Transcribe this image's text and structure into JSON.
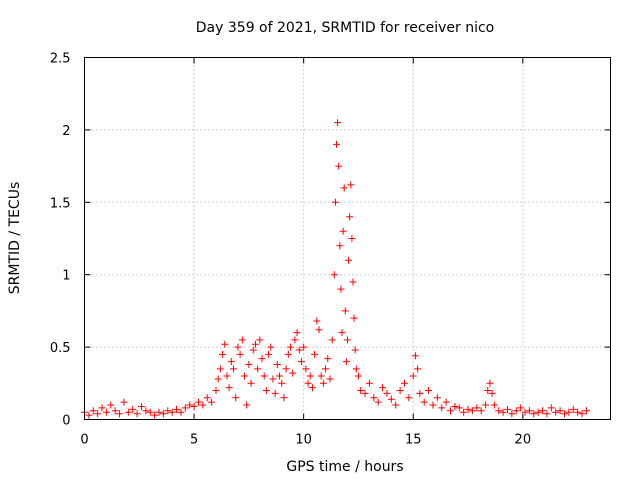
{
  "chart_data": {
    "type": "scatter",
    "title": "Day 359 of 2021, SRMTID for receiver nico",
    "xlabel": "GPS time / hours",
    "ylabel": "SRMTID / TECUs",
    "xlim": [
      0,
      24
    ],
    "ylim": [
      0,
      2.5
    ],
    "xticks": [
      0,
      5,
      10,
      15,
      20
    ],
    "yticks": [
      0,
      0.5,
      1,
      1.5,
      2,
      2.5
    ],
    "xtick_labels": [
      "0",
      "5",
      "10",
      "15",
      "20"
    ],
    "ytick_labels": [
      "0",
      "0.5",
      "1",
      "1.5",
      "2",
      "2.5"
    ],
    "grid": true,
    "marker": "plus",
    "series": [
      {
        "name": "SRMTID",
        "color": "#ff0000",
        "points": [
          [
            0.0,
            0.05
          ],
          [
            0.2,
            0.03
          ],
          [
            0.4,
            0.06
          ],
          [
            0.6,
            0.04
          ],
          [
            0.8,
            0.08
          ],
          [
            1.0,
            0.05
          ],
          [
            1.2,
            0.1
          ],
          [
            1.4,
            0.06
          ],
          [
            1.6,
            0.04
          ],
          [
            1.8,
            0.12
          ],
          [
            2.0,
            0.05
          ],
          [
            2.2,
            0.07
          ],
          [
            2.4,
            0.04
          ],
          [
            2.6,
            0.09
          ],
          [
            2.8,
            0.06
          ],
          [
            3.0,
            0.05
          ],
          [
            3.2,
            0.03
          ],
          [
            3.4,
            0.05
          ],
          [
            3.6,
            0.04
          ],
          [
            3.8,
            0.06
          ],
          [
            4.0,
            0.05
          ],
          [
            4.2,
            0.07
          ],
          [
            4.4,
            0.05
          ],
          [
            4.6,
            0.08
          ],
          [
            4.8,
            0.1
          ],
          [
            5.0,
            0.09
          ],
          [
            5.2,
            0.12
          ],
          [
            5.4,
            0.1
          ],
          [
            5.6,
            0.15
          ],
          [
            5.8,
            0.12
          ],
          [
            6.0,
            0.2
          ],
          [
            6.1,
            0.28
          ],
          [
            6.2,
            0.35
          ],
          [
            6.3,
            0.45
          ],
          [
            6.4,
            0.52
          ],
          [
            6.5,
            0.3
          ],
          [
            6.6,
            0.22
          ],
          [
            6.7,
            0.4
          ],
          [
            6.8,
            0.35
          ],
          [
            6.9,
            0.15
          ],
          [
            7.0,
            0.5
          ],
          [
            7.1,
            0.45
          ],
          [
            7.2,
            0.55
          ],
          [
            7.3,
            0.3
          ],
          [
            7.4,
            0.1
          ],
          [
            7.5,
            0.38
          ],
          [
            7.6,
            0.25
          ],
          [
            7.7,
            0.48
          ],
          [
            7.8,
            0.52
          ],
          [
            7.9,
            0.35
          ],
          [
            8.0,
            0.55
          ],
          [
            8.1,
            0.42
          ],
          [
            8.2,
            0.3
          ],
          [
            8.3,
            0.2
          ],
          [
            8.4,
            0.45
          ],
          [
            8.5,
            0.5
          ],
          [
            8.6,
            0.28
          ],
          [
            8.7,
            0.18
          ],
          [
            8.8,
            0.38
          ],
          [
            8.9,
            0.3
          ],
          [
            9.0,
            0.25
          ],
          [
            9.1,
            0.15
          ],
          [
            9.2,
            0.35
          ],
          [
            9.3,
            0.45
          ],
          [
            9.4,
            0.5
          ],
          [
            9.5,
            0.32
          ],
          [
            9.6,
            0.55
          ],
          [
            9.7,
            0.6
          ],
          [
            9.8,
            0.48
          ],
          [
            9.9,
            0.4
          ],
          [
            10.0,
            0.5
          ],
          [
            10.1,
            0.35
          ],
          [
            10.2,
            0.25
          ],
          [
            10.3,
            0.3
          ],
          [
            10.4,
            0.22
          ],
          [
            10.5,
            0.45
          ],
          [
            10.6,
            0.68
          ],
          [
            10.7,
            0.62
          ],
          [
            10.8,
            0.3
          ],
          [
            10.9,
            0.25
          ],
          [
            11.0,
            0.35
          ],
          [
            11.1,
            0.42
          ],
          [
            11.2,
            0.28
          ],
          [
            11.3,
            0.55
          ],
          [
            11.4,
            1.0
          ],
          [
            11.45,
            1.5
          ],
          [
            11.5,
            1.9
          ],
          [
            11.55,
            2.05
          ],
          [
            11.6,
            1.75
          ],
          [
            11.65,
            1.2
          ],
          [
            11.7,
            0.9
          ],
          [
            11.75,
            0.6
          ],
          [
            11.8,
            1.3
          ],
          [
            11.85,
            1.6
          ],
          [
            11.9,
            0.75
          ],
          [
            11.95,
            0.4
          ],
          [
            12.0,
            0.55
          ],
          [
            12.05,
            1.1
          ],
          [
            12.1,
            1.4
          ],
          [
            12.15,
            1.62
          ],
          [
            12.2,
            1.25
          ],
          [
            12.25,
            0.95
          ],
          [
            12.3,
            0.7
          ],
          [
            12.35,
            0.48
          ],
          [
            12.4,
            0.35
          ],
          [
            12.5,
            0.3
          ],
          [
            12.6,
            0.2
          ],
          [
            12.8,
            0.18
          ],
          [
            13.0,
            0.25
          ],
          [
            13.2,
            0.15
          ],
          [
            13.4,
            0.12
          ],
          [
            13.6,
            0.22
          ],
          [
            13.8,
            0.18
          ],
          [
            14.0,
            0.14
          ],
          [
            14.2,
            0.1
          ],
          [
            14.4,
            0.2
          ],
          [
            14.6,
            0.25
          ],
          [
            14.8,
            0.15
          ],
          [
            15.0,
            0.3
          ],
          [
            15.1,
            0.44
          ],
          [
            15.2,
            0.35
          ],
          [
            15.3,
            0.18
          ],
          [
            15.5,
            0.12
          ],
          [
            15.7,
            0.2
          ],
          [
            15.9,
            0.1
          ],
          [
            16.1,
            0.15
          ],
          [
            16.3,
            0.08
          ],
          [
            16.5,
            0.12
          ],
          [
            16.7,
            0.06
          ],
          [
            16.9,
            0.09
          ],
          [
            17.1,
            0.08
          ],
          [
            17.3,
            0.05
          ],
          [
            17.5,
            0.07
          ],
          [
            17.7,
            0.06
          ],
          [
            17.9,
            0.08
          ],
          [
            18.1,
            0.06
          ],
          [
            18.3,
            0.1
          ],
          [
            18.4,
            0.2
          ],
          [
            18.5,
            0.25
          ],
          [
            18.6,
            0.18
          ],
          [
            18.7,
            0.1
          ],
          [
            18.9,
            0.06
          ],
          [
            19.1,
            0.05
          ],
          [
            19.3,
            0.07
          ],
          [
            19.5,
            0.04
          ],
          [
            19.7,
            0.06
          ],
          [
            19.9,
            0.08
          ],
          [
            20.1,
            0.05
          ],
          [
            20.3,
            0.06
          ],
          [
            20.5,
            0.04
          ],
          [
            20.7,
            0.05
          ],
          [
            20.9,
            0.06
          ],
          [
            21.1,
            0.04
          ],
          [
            21.3,
            0.08
          ],
          [
            21.5,
            0.05
          ],
          [
            21.7,
            0.06
          ],
          [
            21.9,
            0.04
          ],
          [
            22.1,
            0.05
          ],
          [
            22.3,
            0.07
          ],
          [
            22.5,
            0.05
          ],
          [
            22.7,
            0.04
          ],
          [
            22.9,
            0.06
          ]
        ]
      }
    ]
  }
}
